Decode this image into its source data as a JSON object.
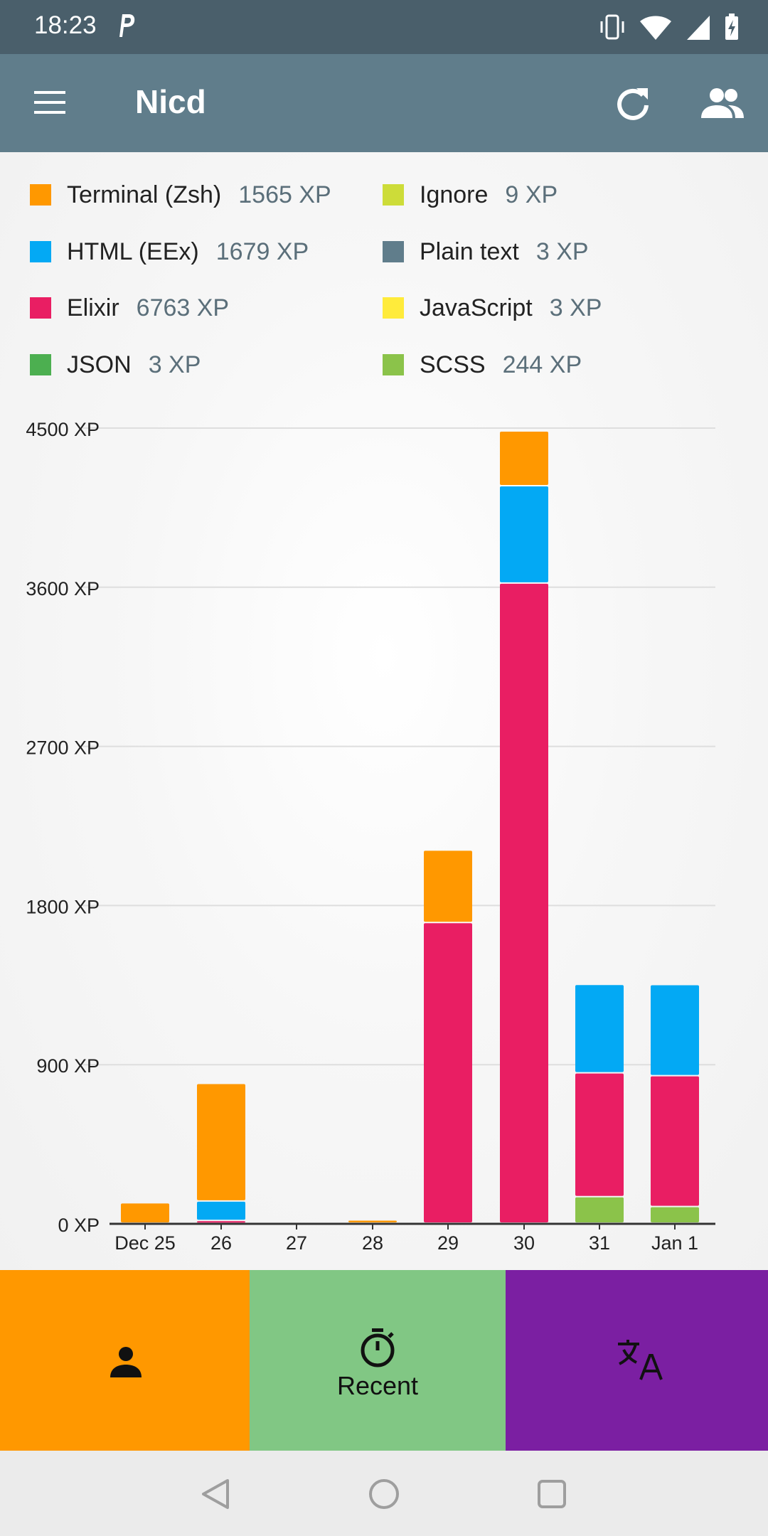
{
  "status_bar": {
    "time": "18:23"
  },
  "app_bar": {
    "title": "Nicd"
  },
  "legend": [
    {
      "name": "Terminal (Zsh)",
      "value": "1565 XP",
      "color": "#ff9800"
    },
    {
      "name": "Ignore",
      "value": "9 XP",
      "color": "#cddc39"
    },
    {
      "name": "HTML (EEx)",
      "value": "1679 XP",
      "color": "#03a9f4"
    },
    {
      "name": "Plain text",
      "value": "3 XP",
      "color": "#607d8b"
    },
    {
      "name": "Elixir",
      "value": "6763 XP",
      "color": "#e91e63"
    },
    {
      "name": "JavaScript",
      "value": "3 XP",
      "color": "#ffeb3b"
    },
    {
      "name": "JSON",
      "value": "3 XP",
      "color": "#4caf50"
    },
    {
      "name": "SCSS",
      "value": "244 XP",
      "color": "#8bc34a"
    }
  ],
  "chart_data": {
    "type": "bar",
    "stacked": true,
    "categories": [
      "Dec 25",
      "26",
      "27",
      "28",
      "29",
      "30",
      "31",
      "Jan 1"
    ],
    "y_ticks": [
      "0 XP",
      "900 XP",
      "1800 XP",
      "2700 XP",
      "3600 XP",
      "4500 XP"
    ],
    "ylim": [
      0,
      4500
    ],
    "grid": true,
    "series": [
      {
        "name": "SCSS",
        "color": "#8bc34a",
        "values": [
          0,
          0,
          0,
          0,
          0,
          0,
          150,
          94
        ]
      },
      {
        "name": "Elixir",
        "color": "#e91e63",
        "values": [
          0,
          15,
          0,
          0,
          1700,
          3620,
          700,
          740
        ]
      },
      {
        "name": "HTML (EEx)",
        "color": "#03a9f4",
        "values": [
          0,
          110,
          0,
          0,
          0,
          550,
          500,
          515
        ]
      },
      {
        "name": "Terminal (Zsh)",
        "color": "#ff9800",
        "values": [
          115,
          665,
          0,
          18,
          410,
          310,
          0,
          0
        ]
      }
    ]
  },
  "bottom_nav": {
    "items": [
      {
        "label": "",
        "color": "#ff9800"
      },
      {
        "label": "Recent",
        "color": "#81c784"
      },
      {
        "label": "",
        "color": "#7b1fa2"
      }
    ]
  }
}
